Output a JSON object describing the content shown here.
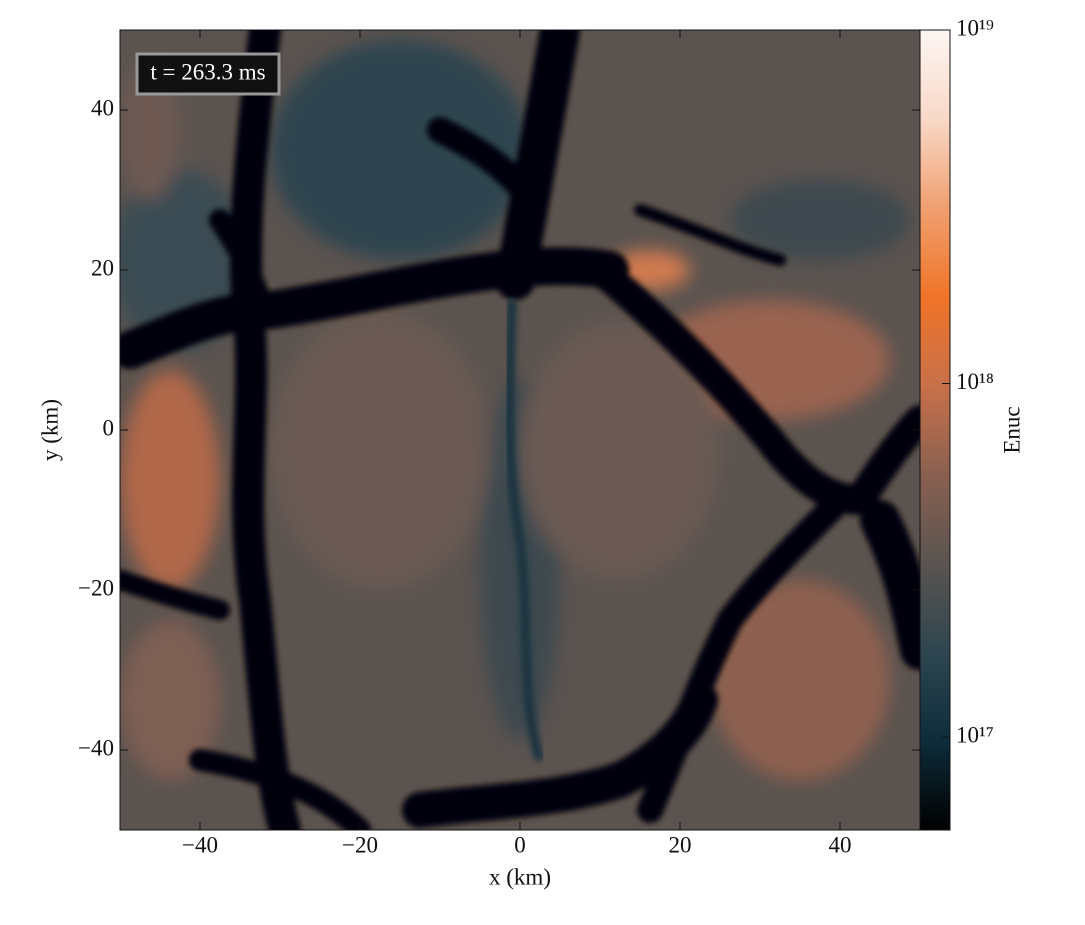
{
  "chart_data": {
    "type": "heatmap",
    "xlabel": "x  (km)",
    "ylabel": "y  (km)",
    "xlim": [
      -50,
      50
    ],
    "ylim": [
      -50,
      50
    ],
    "xticks": [
      {
        "value": -40,
        "label": "−40"
      },
      {
        "value": -20,
        "label": "−20"
      },
      0,
      20,
      40
    ],
    "yticks": [
      {
        "value": -40,
        "label": "−40"
      },
      {
        "value": -20,
        "label": "−20"
      },
      0,
      20,
      40
    ],
    "annotation": "t = 263.3 ms",
    "colorbar": {
      "label": "Enuc",
      "scale": "log",
      "clim": [
        5.46e+16,
        1e+19
      ],
      "ticks": [
        {
          "value": 1e+17,
          "label": "10¹⁷"
        },
        {
          "value": 1e+18,
          "label": "10¹⁸"
        },
        {
          "value": 1e+19,
          "label": "10¹⁹"
        }
      ],
      "colormap": [
        "#000000",
        "#0d2c3a",
        "#2e4650",
        "#5a5450",
        "#8a6050",
        "#c8704a",
        "#f07428",
        "#f0a070",
        "#f8d8c8",
        "#fdf6f2"
      ]
    }
  }
}
